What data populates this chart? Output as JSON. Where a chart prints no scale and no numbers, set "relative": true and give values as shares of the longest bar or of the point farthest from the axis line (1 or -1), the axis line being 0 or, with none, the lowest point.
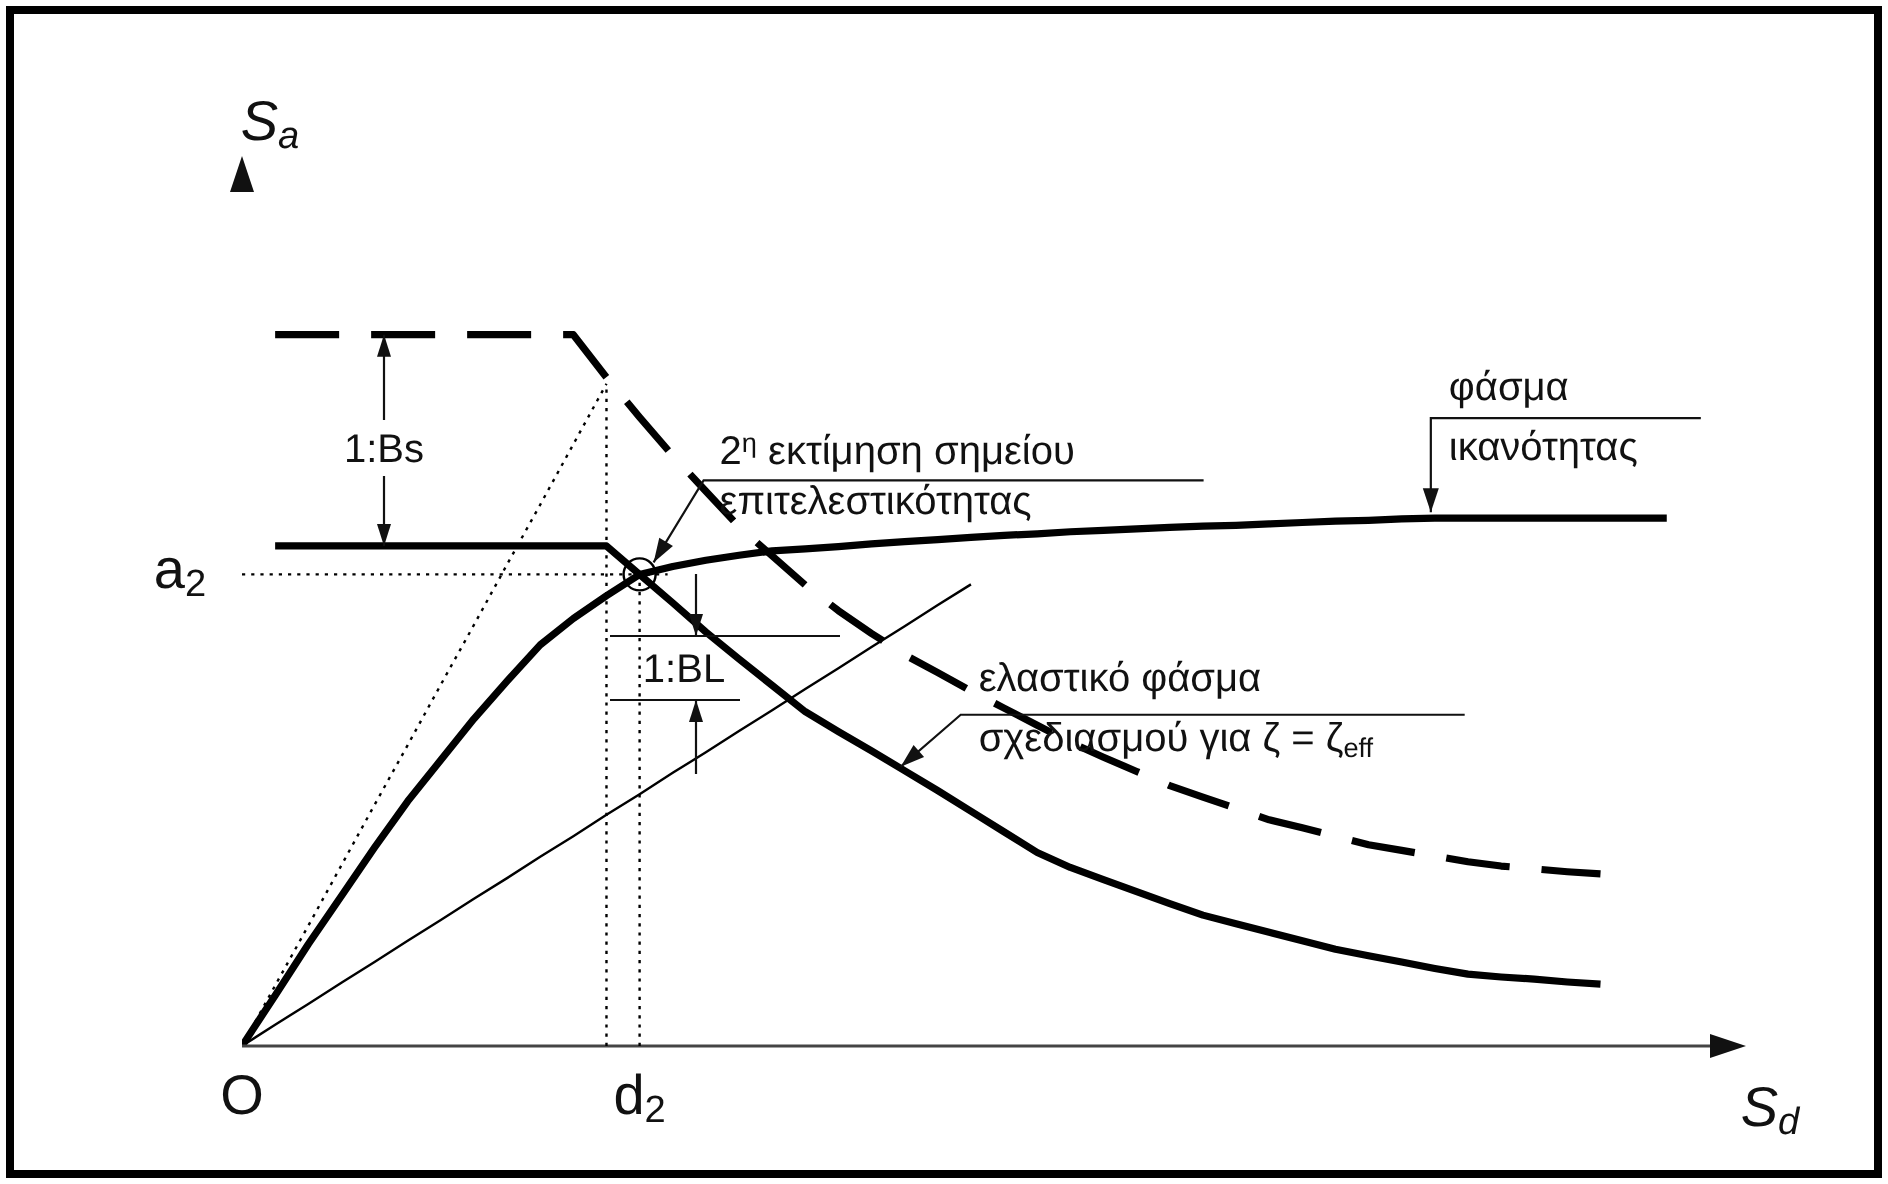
{
  "chart_data": {
    "type": "line",
    "relative": true,
    "xlabel": "S$_{d}$",
    "ylabel": "S$_{a}$",
    "categories": [
      "O",
      null,
      null,
      null,
      null,
      null,
      null,
      null,
      null,
      null,
      null,
      null,
      "d$_{2}$",
      null,
      null,
      null,
      null,
      null,
      null,
      null,
      null,
      null,
      null,
      null,
      null,
      null,
      null,
      null,
      null,
      null,
      null,
      null,
      null,
      null,
      null,
      null,
      null,
      null,
      null,
      null,
      null,
      null,
      null,
      null
    ],
    "series": [
      {
        "color": "#000000",
        "line_style": "dashed",
        "values": [
          null,
          1,
          1,
          1,
          1,
          1,
          1,
          1,
          1,
          1,
          1,
          0.94,
          0.884,
          0.83,
          0.78,
          0.73,
          0.689,
          0.648,
          0.612,
          0.58,
          0.55,
          0.525,
          0.499,
          0.475,
          0.451,
          0.427,
          0.406,
          0.386,
          0.366,
          0.35,
          0.334,
          0.318,
          0.307,
          0.295,
          0.283,
          0.275,
          0.267,
          0.259,
          0.253,
          0.249,
          0.245,
          0.242,
          null,
          null
        ]
      },
      {
        "name": "ελαστικό φάσμα\nσχεδιασμού για ζ = ζ$_{eff}$",
        "color": "#000000",
        "line_style": "solid",
        "values": [
          null,
          0.703,
          0.703,
          0.703,
          0.703,
          0.703,
          0.703,
          0.703,
          0.703,
          0.703,
          0.703,
          0.703,
          0.663,
          0.623,
          0.582,
          0.544,
          0.507,
          0.47,
          0.442,
          0.415,
          0.387,
          0.359,
          0.33,
          0.301,
          0.272,
          0.251,
          0.234,
          0.217,
          0.2,
          0.184,
          0.172,
          0.16,
          0.148,
          0.136,
          0.127,
          0.118,
          0.109,
          0.101,
          0.097,
          0.094,
          0.09,
          0.087,
          null,
          null
        ]
      },
      {
        "name": "φάσμα\nικανότητας",
        "color": "#000000",
        "line_style": "solid",
        "values": [
          0,
          0.071,
          0.143,
          0.211,
          0.279,
          0.344,
          0.402,
          0.46,
          0.513,
          0.564,
          0.601,
          0.633,
          0.663,
          0.674,
          0.683,
          0.69,
          0.696,
          0.699,
          0.702,
          0.706,
          0.709,
          0.712,
          0.715,
          0.718,
          0.72,
          0.723,
          0.725,
          0.727,
          0.729,
          0.731,
          0.732,
          0.734,
          0.736,
          0.738,
          0.739,
          0.741,
          0.742,
          0.742,
          0.742,
          0.742,
          0.742,
          0.742,
          0.742,
          0.742
        ]
      },
      {
        "color": "#000000",
        "line_style": "dotted",
        "values": [
          0,
          0.085,
          0.169,
          0.254,
          0.339,
          0.423,
          0.508,
          0.592,
          0.677,
          0.761,
          0.846,
          0.931,
          null,
          null,
          null,
          null,
          null,
          null,
          null,
          null,
          null,
          null,
          null,
          null,
          null,
          null,
          null,
          null,
          null,
          null,
          null,
          null,
          null,
          null,
          null,
          null,
          null,
          null,
          null,
          null,
          null,
          null,
          null,
          null
        ]
      },
      {
        "color": "#000000",
        "line_style": "solid",
        "values": [
          0,
          0.03,
          0.059,
          0.089,
          0.118,
          0.148,
          0.177,
          0.207,
          0.236,
          0.266,
          0.295,
          0.325,
          0.354,
          0.384,
          0.413,
          0.443,
          0.472,
          0.502,
          0.531,
          0.561,
          0.59,
          0.62,
          0.649,
          null,
          null,
          null,
          null,
          null,
          null,
          null,
          null,
          null,
          null,
          null,
          null,
          null,
          null,
          null,
          null,
          null,
          null,
          null,
          null,
          null
        ]
      },
      {
        "type": "scatter",
        "name": "2$^{η}$ εκτίμηση σημείου\nεπιτελεστικότητας",
        "color": "#000000",
        "marker": "circle",
        "x": [
          "d$_{2}$"
        ],
        "values": [
          0.663
        ]
      }
    ],
    "ref_lines": [
      {
        "axis": "y",
        "value": 0.663,
        "label": "a$_{2}$",
        "color": "#000000",
        "line_style": "dotted"
      }
    ],
    "annotations": [
      "1:Bs",
      "1:BL"
    ]
  }
}
